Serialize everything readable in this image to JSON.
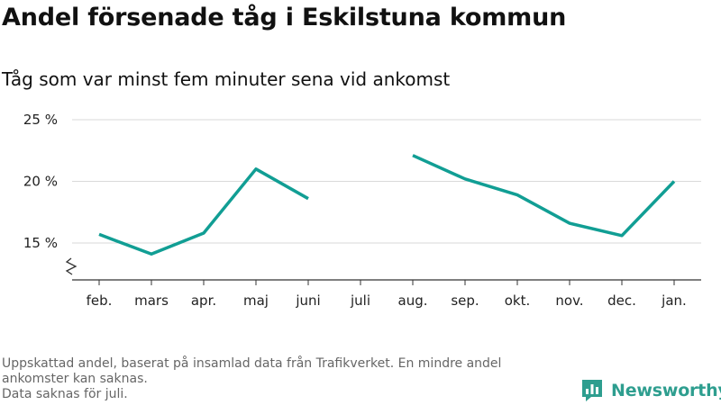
{
  "chart_data": {
    "type": "line",
    "title": "Andel försenade tåg i Eskilstuna kommun",
    "subtitle": "Tåg som var minst fem minuter sena vid ankomst",
    "categories": [
      "feb.",
      "mars",
      "apr.",
      "maj",
      "juni",
      "juli",
      "aug.",
      "sep.",
      "okt.",
      "nov.",
      "dec.",
      "jan."
    ],
    "series": [
      {
        "values": [
          15.7,
          14.1,
          15.8,
          21.0,
          18.6,
          null,
          22.1,
          20.2,
          18.9,
          16.6,
          15.6,
          20.0
        ],
        "color": "#119e94"
      }
    ],
    "y_ticks": [
      15,
      20,
      25
    ],
    "y_tick_labels": [
      "15 %",
      "20 %",
      "25 %"
    ],
    "ylim": [
      12,
      25
    ],
    "grid": true,
    "axis_break": true,
    "xlabel": "",
    "ylabel": ""
  },
  "footnote": {
    "line1": "Uppskattad andel, baserat på insamlad data från Trafikverket. En mindre andel",
    "line2": "ankomster kan saknas.",
    "line3": "Data saknas för juli."
  },
  "logo": {
    "text": "Newsworthy",
    "color": "#2e9e8f",
    "icon": "bar-chart-speech-bubble-icon"
  }
}
